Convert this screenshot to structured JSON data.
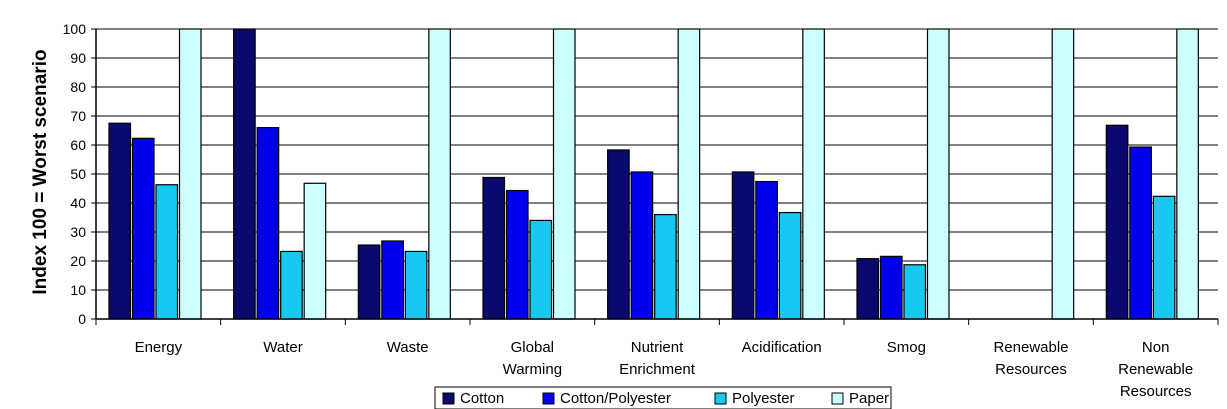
{
  "chart_data": {
    "type": "bar",
    "title": "",
    "xlabel": "",
    "ylabel": "Index 100 = Worst scenario",
    "ylim": [
      0,
      100
    ],
    "yticks": [
      0,
      10,
      20,
      30,
      40,
      50,
      60,
      70,
      80,
      90,
      100
    ],
    "grid": true,
    "legend_position": "bottom",
    "categories": [
      [
        "Energy"
      ],
      [
        "Water"
      ],
      [
        "Waste"
      ],
      [
        "Global",
        "Warming"
      ],
      [
        "Nutrient",
        "Enrichment"
      ],
      [
        "Acidification"
      ],
      [
        "Smog"
      ],
      [
        "Renewable",
        "Resources"
      ],
      [
        "Non",
        "Renewable",
        "Resources"
      ]
    ],
    "series": [
      {
        "name": "Cotton",
        "color": "#0a0a6e",
        "values": [
          67.5,
          100,
          25.5,
          48.8,
          58.3,
          50.7,
          20.8,
          0,
          66.8
        ]
      },
      {
        "name": "Cotton/Polyester",
        "color": "#0000ee",
        "values": [
          62.3,
          66,
          26.9,
          44.3,
          50.7,
          47.4,
          21.6,
          0,
          59.3
        ]
      },
      {
        "name": "Polyester",
        "color": "#18c8f0",
        "values": [
          46.3,
          23.3,
          23.3,
          34,
          36,
          36.7,
          18.7,
          0,
          42.3
        ]
      },
      {
        "name": "Paper",
        "color": "#ccffff",
        "values": [
          100,
          46.8,
          100,
          100,
          100,
          100,
          100,
          100,
          100
        ]
      }
    ]
  }
}
